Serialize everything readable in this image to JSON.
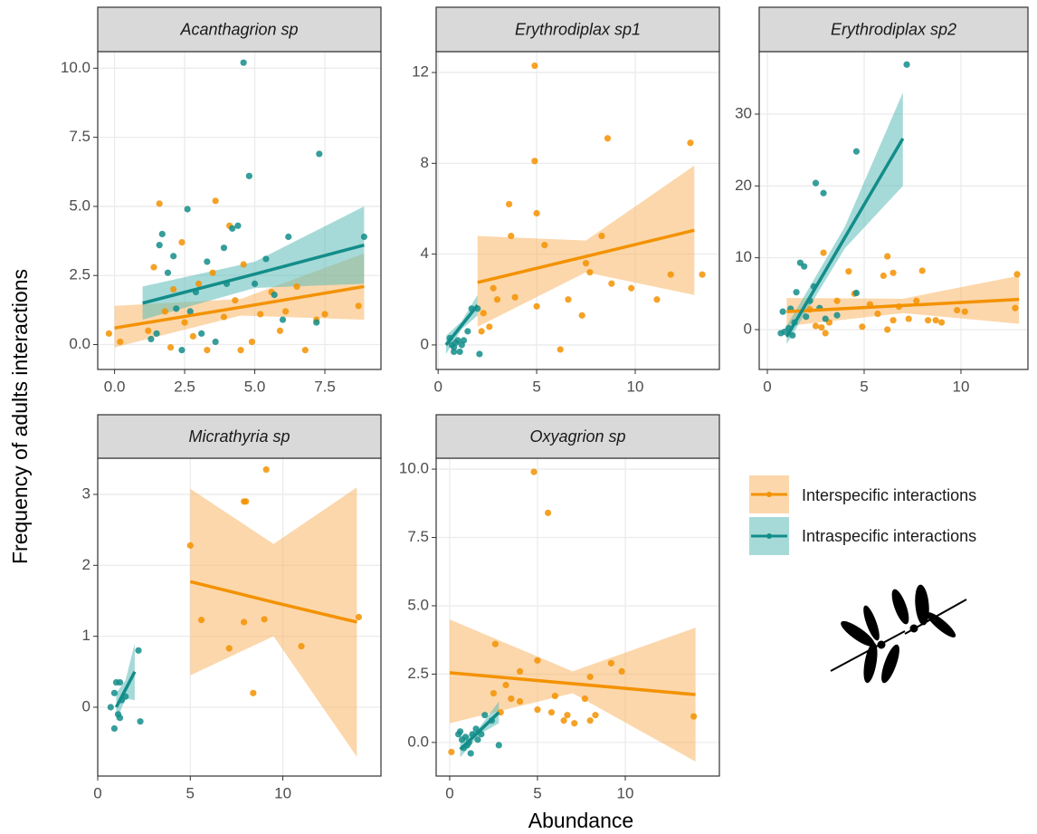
{
  "x_label": "Abundance",
  "y_label": "Frequency of adults interactions",
  "chart_data": [
    {
      "type": "scatter",
      "title": "Acanthagrion sp",
      "grid": true,
      "xlim": [
        -0.6,
        9.5
      ],
      "xticks": [
        {
          "value": 0,
          "label": "0.0"
        },
        {
          "value": 2.5,
          "label": "2.5"
        },
        {
          "value": 5,
          "label": "5.0"
        },
        {
          "value": 7.5,
          "label": "7.5"
        }
      ],
      "ylim": [
        -0.9,
        10.6
      ],
      "yticks": [
        {
          "value": 0,
          "label": "0.0"
        },
        {
          "value": 2.5,
          "label": "2.5"
        },
        {
          "value": 5,
          "label": "5.0"
        },
        {
          "value": 7.5,
          "label": "7.5"
        },
        {
          "value": 10,
          "label": "10.0"
        }
      ],
      "series": [
        {
          "name": "Interspecific interactions",
          "color": "#f39200",
          "band_color": "#f9b666",
          "x": [
            1.6,
            3.6,
            4.1,
            4.6,
            2.4,
            2.1,
            3.0,
            1.2,
            1.8,
            2.5,
            2.8,
            3.3,
            3.9,
            4.3,
            5.2,
            5.6,
            6.1,
            6.5,
            6.8,
            7.2,
            8.7,
            0.2,
            -0.2,
            4.9,
            3.5,
            2.0,
            5.9,
            4.5,
            1.4,
            7.5
          ],
          "values": [
            5.1,
            5.2,
            4.3,
            2.9,
            3.7,
            2.0,
            2.2,
            0.5,
            1.2,
            0.8,
            0.3,
            -0.2,
            1.0,
            1.6,
            1.1,
            1.9,
            1.2,
            2.1,
            -0.2,
            0.9,
            1.4,
            0.1,
            0.4,
            0.1,
            2.6,
            -0.1,
            0.5,
            -0.2,
            2.8,
            1.1
          ],
          "fit": {
            "x": [
              0,
              4.5,
              8.9
            ],
            "values": [
              0.6,
              1.35,
              2.1
            ],
            "lower": [
              -0.1,
              1.05,
              0.9
            ],
            "upper": [
              1.4,
              1.65,
              3.3
            ]
          }
        },
        {
          "name": "Intraspecific interactions",
          "color": "#138d8a",
          "band_color": "#5dbcb8",
          "x": [
            4.6,
            7.3,
            4.8,
            2.6,
            1.7,
            1.6,
            3.3,
            4.2,
            2.1,
            6.2,
            2.9,
            3.9,
            5.0,
            1.3,
            1.9,
            2.2,
            5.7,
            2.7,
            3.1,
            4.0,
            1.5,
            6.0,
            7.2,
            8.9,
            5.4,
            3.6,
            2.4,
            4.4
          ],
          "values": [
            10.2,
            6.9,
            6.1,
            4.9,
            4.0,
            3.6,
            3.0,
            4.2,
            3.2,
            3.9,
            1.9,
            3.5,
            2.2,
            0.2,
            2.6,
            1.3,
            1.8,
            1.2,
            0.4,
            2.2,
            0.4,
            0.9,
            0.8,
            3.9,
            3.1,
            0.1,
            -0.2,
            4.3
          ],
          "fit": {
            "x": [
              1,
              5,
              8.9
            ],
            "values": [
              1.5,
              2.55,
              3.6
            ],
            "lower": [
              0.9,
              2.05,
              2.2
            ],
            "upper": [
              2.1,
              3.0,
              5.0
            ]
          }
        }
      ]
    },
    {
      "type": "scatter",
      "title": "Erythrodiplax sp1",
      "grid": true,
      "xlim": [
        -0.1,
        14.27
      ],
      "xticks": [
        0,
        5,
        10
      ],
      "ylim": [
        -1.08,
        12.92
      ],
      "yticks": [
        0,
        4,
        8,
        12
      ],
      "series": [
        {
          "name": "Interspecific interactions",
          "color": "#f39200",
          "band_color": "#f9b666",
          "x": [
            4.9,
            8.6,
            12.8,
            4.9,
            5.0,
            3.6,
            3.7,
            5.4,
            8.3,
            7.5,
            7.7,
            11.8,
            13.4,
            2.8,
            3.9,
            6.6,
            6.2,
            7.3,
            5.0,
            8.8,
            11.1,
            2.3,
            2.6,
            9.8,
            2.2,
            3.0
          ],
          "values": [
            12.3,
            9.1,
            8.9,
            8.1,
            5.8,
            6.2,
            4.8,
            4.4,
            4.8,
            3.6,
            3.2,
            3.1,
            3.1,
            2.5,
            2.1,
            2.0,
            -0.2,
            1.3,
            1.7,
            2.7,
            2.0,
            1.4,
            0.8,
            2.5,
            0.6,
            2.0
          ],
          "fit": {
            "x": [
              2,
              7.5,
              13
            ],
            "values": [
              2.75,
              3.9,
              5.05
            ],
            "lower": [
              0.8,
              3.2,
              2.2
            ],
            "upper": [
              4.8,
              4.6,
              7.9
            ]
          }
        },
        {
          "name": "Intraspecific interactions",
          "color": "#138d8a",
          "band_color": "#5dbcb8",
          "x": [
            0.6,
            0.8,
            0.7,
            1.0,
            1.1,
            0.9,
            1.3,
            1.5,
            1.7,
            2.0,
            2.1,
            0.8,
            1.2
          ],
          "values": [
            0.3,
            -0.1,
            0.0,
            0.2,
            -0.3,
            0.1,
            0.2,
            0.6,
            1.6,
            1.6,
            -0.4,
            -0.3,
            0.0
          ],
          "fit": {
            "x": [
              0.4,
              1.2,
              2.0
            ],
            "values": [
              0,
              0.875,
              1.75
            ],
            "lower": [
              -0.4,
              0.7,
              1.3
            ],
            "upper": [
              0.4,
              1.05,
              2.2
            ]
          }
        }
      ]
    },
    {
      "type": "scatter",
      "title": "Erythrodiplax sp2",
      "grid": true,
      "xlim": [
        -0.42,
        13.46
      ],
      "xticks": [
        0,
        5,
        10
      ],
      "ylim": [
        -5.55,
        38.7
      ],
      "yticks": [
        0,
        10,
        20,
        30
      ],
      "series": [
        {
          "name": "Interspecific interactions",
          "color": "#f39200",
          "band_color": "#f9b666",
          "x": [
            2.9,
            6.2,
            6.5,
            4.2,
            6.0,
            8.0,
            12.9,
            4.5,
            3.6,
            5.3,
            6.8,
            7.7,
            9.8,
            10.2,
            12.8,
            5.7,
            6.5,
            7.3,
            8.3,
            9.0,
            2.5,
            3.0,
            2.2,
            3.2,
            4.9,
            6.2,
            8.7,
            2.8
          ],
          "values": [
            10.7,
            10.2,
            7.9,
            8.1,
            7.5,
            8.2,
            7.7,
            5.0,
            4.0,
            3.5,
            3.2,
            4.0,
            2.7,
            2.5,
            3.0,
            2.2,
            1.3,
            1.5,
            1.3,
            1.0,
            0.5,
            -0.5,
            2.8,
            1.0,
            0.4,
            0.0,
            1.3,
            0.3
          ],
          "fit": {
            "x": [
              1,
              7,
              13
            ],
            "values": [
              2.5,
              3.35,
              4.2
            ],
            "lower": [
              0.5,
              2.3,
              0.8
            ],
            "upper": [
              4.4,
              4.3,
              7.5
            ]
          }
        },
        {
          "name": "Intraspecific interactions",
          "color": "#138d8a",
          "band_color": "#5dbcb8",
          "x": [
            7.2,
            4.6,
            2.5,
            2.9,
            1.7,
            1.9,
            2.4,
            1.5,
            2.2,
            4.6,
            1.2,
            0.8,
            0.7,
            1.1,
            1.4,
            2.0,
            3.0,
            1.3,
            0.9,
            2.7,
            3.6
          ],
          "values": [
            36.9,
            24.8,
            20.4,
            19.0,
            9.3,
            8.8,
            6.0,
            5.2,
            4.0,
            5.1,
            2.9,
            2.5,
            -0.5,
            0.2,
            1.0,
            1.8,
            1.5,
            -0.8,
            -0.3,
            3.0,
            2.0
          ],
          "fit": {
            "x": [
              1,
              4,
              7
            ],
            "values": [
              -1,
              12.8,
              26.6
            ],
            "lower": [
              -2,
              11.3,
              20
            ],
            "upper": [
              0.5,
              14.3,
              33
            ]
          }
        }
      ]
    },
    {
      "type": "scatter",
      "title": "Micrathyria sp",
      "grid": true,
      "xlim": [
        0,
        15.3
      ],
      "xticks": [
        0,
        5,
        10
      ],
      "ylim": [
        -0.97,
        3.51
      ],
      "yticks": [
        0,
        1,
        2,
        3
      ],
      "series": [
        {
          "name": "Interspecific interactions",
          "color": "#f39200",
          "band_color": "#f9b666",
          "x": [
            8.0,
            9.1,
            5.0,
            5.6,
            7.1,
            7.9,
            9.0,
            11.0,
            8.4,
            14.1,
            7.9
          ],
          "values": [
            2.9,
            3.35,
            2.28,
            1.23,
            0.83,
            1.2,
            1.24,
            0.86,
            0.2,
            1.27,
            2.9
          ],
          "fit": {
            "x": [
              5,
              9.5,
              14
            ],
            "values": [
              1.77,
              1.48,
              1.2
            ],
            "lower": [
              0.45,
              1.0,
              -0.7
            ],
            "upper": [
              3.08,
              2.3,
              3.1
            ]
          }
        },
        {
          "name": "Intraspecific interactions",
          "color": "#138d8a",
          "band_color": "#5dbcb8",
          "x": [
            2.2,
            1.0,
            1.2,
            0.9,
            1.3,
            0.7,
            1.1,
            0.9,
            2.3,
            1.5,
            1.2
          ],
          "values": [
            0.8,
            0.35,
            0.35,
            0.2,
            0.1,
            0.0,
            -0.1,
            -0.3,
            -0.2,
            0.15,
            -0.15
          ],
          "fit": {
            "x": [
              1,
              1.5,
              2
            ],
            "values": [
              0,
              0.25,
              0.5
            ],
            "lower": [
              -0.2,
              0.12,
              0.1
            ],
            "upper": [
              0.2,
              0.38,
              0.9
            ]
          }
        }
      ]
    },
    {
      "type": "scatter",
      "title": "Oxyagrion sp",
      "grid": true,
      "xlim": [
        -0.77,
        15.36
      ],
      "xticks": [
        0,
        5,
        10
      ],
      "ylim": [
        -1.23,
        10.4
      ],
      "yticks": [
        {
          "value": 0,
          "label": "0.0"
        },
        {
          "value": 2.5,
          "label": "2.5"
        },
        {
          "value": 5,
          "label": "5.0"
        },
        {
          "value": 7.5,
          "label": "7.5"
        },
        {
          "value": 10,
          "label": "10.0"
        }
      ],
      "series": [
        {
          "name": "Interspecific interactions",
          "color": "#f39200",
          "band_color": "#f9b666",
          "x": [
            4.8,
            5.6,
            2.6,
            5.0,
            4.0,
            9.2,
            9.8,
            8.0,
            3.2,
            2.5,
            3.5,
            4.0,
            5.0,
            6.7,
            5.8,
            7.1,
            8.3,
            6.5,
            8.0,
            13.9,
            6.0,
            0.1,
            2.9,
            7.7
          ],
          "values": [
            9.9,
            8.4,
            3.6,
            3.0,
            2.6,
            2.9,
            2.6,
            2.4,
            2.1,
            1.8,
            1.6,
            1.5,
            1.2,
            1.0,
            1.1,
            0.7,
            1.0,
            0.8,
            0.8,
            0.95,
            1.7,
            -0.35,
            1.1,
            1.6
          ],
          "fit": {
            "x": [
              0,
              7,
              14
            ],
            "values": [
              2.55,
              2.15,
              1.75
            ],
            "lower": [
              0.7,
              1.8,
              -0.7
            ],
            "upper": [
              4.5,
              2.6,
              4.2
            ]
          }
        },
        {
          "name": "Intraspecific interactions",
          "color": "#138d8a",
          "band_color": "#5dbcb8",
          "x": [
            0.5,
            0.7,
            0.9,
            1.0,
            1.1,
            1.2,
            0.8,
            1.3,
            1.5,
            2.0,
            2.4,
            2.8,
            1.6,
            0.6,
            1.8
          ],
          "values": [
            0.3,
            0.1,
            0.2,
            -0.1,
            0.0,
            -0.4,
            -0.2,
            0.3,
            0.5,
            1.0,
            0.8,
            -0.1,
            0.1,
            0.4,
            0.3
          ],
          "fit": {
            "x": [
              0.6,
              1.7,
              2.8
            ],
            "values": [
              -0.25,
              0.42,
              1.1
            ],
            "lower": [
              -0.55,
              0.3,
              0.7
            ],
            "upper": [
              0.05,
              0.55,
              1.5
            ]
          }
        }
      ]
    }
  ]
}
